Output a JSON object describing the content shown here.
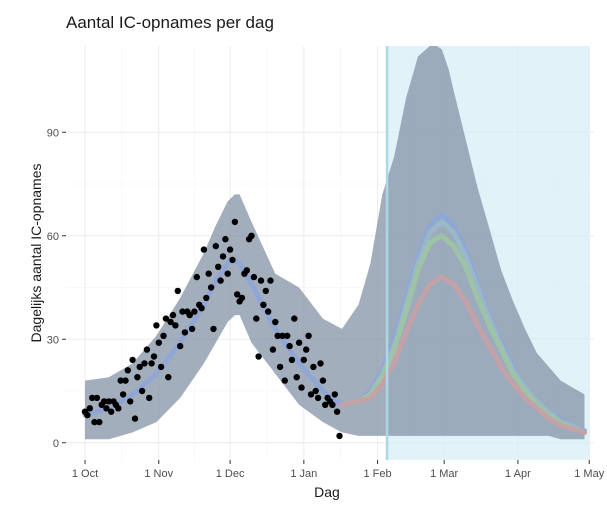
{
  "chart_data": {
    "type": "line",
    "title": "Aantal IC-opnames per dag",
    "xlabel": "Dag",
    "ylabel": "Dagelijks aantal IC-opnames",
    "x_ticks": [
      "1 Oct",
      "1 Nov",
      "1 Dec",
      "1 Jan",
      "1 Feb",
      "1 Mar",
      "1 Apr",
      "1 May"
    ],
    "x_tick_days": [
      0,
      31,
      61,
      92,
      123,
      151,
      182,
      212
    ],
    "y_ticks": [
      0,
      30,
      60,
      90
    ],
    "xlim": [
      -8,
      214
    ],
    "ylim": [
      -5,
      115
    ],
    "grid": true,
    "forecast_start_day": 127,
    "colors": {
      "ribbon": "#7f8fa3",
      "forecast_region": "#d6edf7",
      "forecast_line": "#a9d8e8",
      "points": "#000000"
    },
    "observed_points": [
      {
        "x": 0,
        "y": 9
      },
      {
        "x": 1,
        "y": 8
      },
      {
        "x": 2,
        "y": 10
      },
      {
        "x": 3,
        "y": 13
      },
      {
        "x": 4,
        "y": 6
      },
      {
        "x": 5,
        "y": 13
      },
      {
        "x": 6,
        "y": 6
      },
      {
        "x": 7,
        "y": 11
      },
      {
        "x": 8,
        "y": 12
      },
      {
        "x": 9,
        "y": 10
      },
      {
        "x": 10,
        "y": 12
      },
      {
        "x": 11,
        "y": 9
      },
      {
        "x": 12,
        "y": 12
      },
      {
        "x": 13,
        "y": 11
      },
      {
        "x": 14,
        "y": 10
      },
      {
        "x": 15,
        "y": 18
      },
      {
        "x": 16,
        "y": 14
      },
      {
        "x": 17,
        "y": 18
      },
      {
        "x": 18,
        "y": 21
      },
      {
        "x": 19,
        "y": 12
      },
      {
        "x": 20,
        "y": 24
      },
      {
        "x": 21,
        "y": 7
      },
      {
        "x": 22,
        "y": 19
      },
      {
        "x": 23,
        "y": 22
      },
      {
        "x": 24,
        "y": 15
      },
      {
        "x": 25,
        "y": 23
      },
      {
        "x": 26,
        "y": 27
      },
      {
        "x": 27,
        "y": 13
      },
      {
        "x": 28,
        "y": 23
      },
      {
        "x": 29,
        "y": 25
      },
      {
        "x": 30,
        "y": 34
      },
      {
        "x": 31,
        "y": 29
      },
      {
        "x": 32,
        "y": 22
      },
      {
        "x": 33,
        "y": 31
      },
      {
        "x": 34,
        "y": 36
      },
      {
        "x": 35,
        "y": 19
      },
      {
        "x": 36,
        "y": 35
      },
      {
        "x": 37,
        "y": 37
      },
      {
        "x": 38,
        "y": 34
      },
      {
        "x": 39,
        "y": 44
      },
      {
        "x": 40,
        "y": 28
      },
      {
        "x": 41,
        "y": 38
      },
      {
        "x": 42,
        "y": 32
      },
      {
        "x": 43,
        "y": 38
      },
      {
        "x": 44,
        "y": 37
      },
      {
        "x": 45,
        "y": 33
      },
      {
        "x": 46,
        "y": 38
      },
      {
        "x": 47,
        "y": 48
      },
      {
        "x": 48,
        "y": 40
      },
      {
        "x": 49,
        "y": 39
      },
      {
        "x": 50,
        "y": 56
      },
      {
        "x": 51,
        "y": 42
      },
      {
        "x": 52,
        "y": 49
      },
      {
        "x": 53,
        "y": 45
      },
      {
        "x": 54,
        "y": 33
      },
      {
        "x": 55,
        "y": 57
      },
      {
        "x": 56,
        "y": 51
      },
      {
        "x": 57,
        "y": 47
      },
      {
        "x": 58,
        "y": 54
      },
      {
        "x": 59,
        "y": 59
      },
      {
        "x": 60,
        "y": 49
      },
      {
        "x": 61,
        "y": 56
      },
      {
        "x": 62,
        "y": 53
      },
      {
        "x": 63,
        "y": 64
      },
      {
        "x": 64,
        "y": 43
      },
      {
        "x": 65,
        "y": 41
      },
      {
        "x": 66,
        "y": 42
      },
      {
        "x": 67,
        "y": 49
      },
      {
        "x": 68,
        "y": 50
      },
      {
        "x": 69,
        "y": 59
      },
      {
        "x": 70,
        "y": 60
      },
      {
        "x": 71,
        "y": 48
      },
      {
        "x": 72,
        "y": 36
      },
      {
        "x": 73,
        "y": 25
      },
      {
        "x": 74,
        "y": 47
      },
      {
        "x": 75,
        "y": 40
      },
      {
        "x": 76,
        "y": 44
      },
      {
        "x": 77,
        "y": 38
      },
      {
        "x": 78,
        "y": 47
      },
      {
        "x": 79,
        "y": 27
      },
      {
        "x": 80,
        "y": 35
      },
      {
        "x": 81,
        "y": 31
      },
      {
        "x": 82,
        "y": 22
      },
      {
        "x": 83,
        "y": 31
      },
      {
        "x": 84,
        "y": 18
      },
      {
        "x": 85,
        "y": 31
      },
      {
        "x": 86,
        "y": 28
      },
      {
        "x": 87,
        "y": 24
      },
      {
        "x": 88,
        "y": 36
      },
      {
        "x": 89,
        "y": 19
      },
      {
        "x": 90,
        "y": 29
      },
      {
        "x": 91,
        "y": 16
      },
      {
        "x": 92,
        "y": 24
      },
      {
        "x": 93,
        "y": 27
      },
      {
        "x": 94,
        "y": 31
      },
      {
        "x": 95,
        "y": 14
      },
      {
        "x": 96,
        "y": 22
      },
      {
        "x": 97,
        "y": 15
      },
      {
        "x": 98,
        "y": 13
      },
      {
        "x": 99,
        "y": 23
      },
      {
        "x": 100,
        "y": 18
      },
      {
        "x": 101,
        "y": 11
      },
      {
        "x": 102,
        "y": 13
      },
      {
        "x": 103,
        "y": 12
      },
      {
        "x": 104,
        "y": 11
      },
      {
        "x": 105,
        "y": 14
      },
      {
        "x": 106,
        "y": 9
      },
      {
        "x": 107,
        "y": 2
      }
    ],
    "fit_band": {
      "x": [
        0,
        10,
        20,
        30,
        40,
        50,
        55,
        60,
        63,
        65,
        70,
        80,
        90,
        100,
        108,
        115,
        120,
        125,
        130,
        135,
        140,
        145,
        148,
        150,
        153,
        155,
        160,
        165,
        170,
        175,
        180,
        185,
        190,
        195,
        200,
        205,
        210
      ],
      "upper": [
        18,
        19,
        23,
        31,
        42,
        55,
        63,
        70,
        72,
        72,
        64,
        49,
        45,
        36,
        33,
        40,
        52,
        72,
        83,
        100,
        112,
        115,
        115,
        114,
        108,
        102,
        88,
        74,
        62,
        50,
        41,
        33,
        26,
        22,
        18,
        16,
        14
      ],
      "lower": [
        1,
        1,
        3,
        6,
        13,
        23,
        29,
        35,
        37,
        37,
        29,
        20,
        11,
        6,
        3,
        2,
        2,
        2,
        2,
        2,
        2,
        2,
        2,
        2,
        2,
        2,
        2,
        2,
        2,
        2,
        2,
        2,
        2,
        2,
        1,
        1,
        1
      ]
    },
    "series": [
      {
        "color": "#8ea6d8",
        "x": [
          0,
          10,
          20,
          30,
          40,
          50,
          55,
          60,
          62,
          65,
          70,
          80,
          90,
          100,
          105,
          110,
          115,
          120,
          125,
          130,
          135,
          140,
          145,
          150,
          155,
          160,
          165,
          170,
          175,
          180,
          185,
          190,
          195,
          200,
          205,
          210
        ],
        "values": [
          8,
          10,
          14,
          20,
          29,
          40,
          47,
          52,
          53,
          52,
          46,
          33,
          23,
          15,
          12,
          11,
          12,
          15,
          21,
          30,
          42,
          54,
          63,
          66,
          63,
          56,
          46,
          37,
          29,
          22,
          16,
          12,
          9,
          7,
          5,
          3.5
        ]
      },
      {
        "color": "#9ab9c8",
        "x": [
          108,
          115,
          120,
          125,
          130,
          135,
          140,
          145,
          150,
          155,
          160,
          165,
          170,
          175,
          180,
          185,
          190,
          195,
          200,
          205,
          210
        ],
        "values": [
          11,
          12,
          14,
          20,
          28,
          40,
          52,
          61,
          64,
          61,
          54,
          45,
          36,
          28,
          21,
          16,
          12,
          9,
          6,
          5,
          3
        ]
      },
      {
        "color": "#9fc4a3",
        "x": [
          108,
          115,
          120,
          125,
          130,
          135,
          140,
          145,
          150,
          155,
          160,
          165,
          170,
          175,
          180,
          185,
          190,
          195,
          200,
          205,
          210
        ],
        "values": [
          11,
          12,
          14,
          19,
          27,
          38,
          50,
          58,
          60,
          57,
          51,
          42,
          34,
          27,
          20,
          15,
          11,
          8,
          6,
          4,
          3
        ]
      },
      {
        "color": "#c8a0a6",
        "x": [
          108,
          115,
          120,
          125,
          130,
          135,
          140,
          145,
          150,
          155,
          160,
          165,
          170,
          175,
          180,
          185,
          190,
          195,
          200,
          205,
          210
        ],
        "values": [
          11,
          12,
          13,
          17,
          23,
          32,
          40,
          46,
          48,
          46,
          41,
          34,
          28,
          22,
          17,
          13,
          10,
          7,
          5,
          4,
          3
        ]
      }
    ]
  }
}
